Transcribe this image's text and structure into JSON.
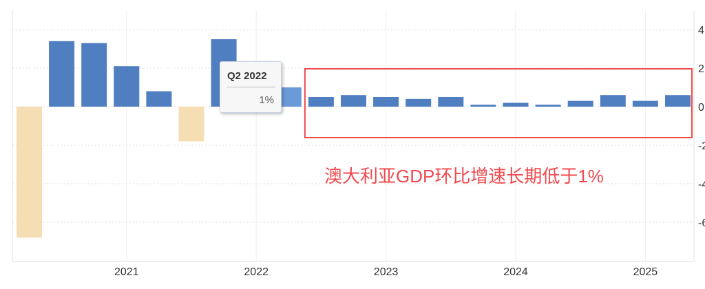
{
  "chart_data": {
    "type": "bar",
    "categories": [
      "Q2 2020",
      "Q3 2020",
      "Q4 2020",
      "Q1 2021",
      "Q2 2021",
      "Q3 2021",
      "Q4 2021",
      "Q1 2022",
      "Q2 2022",
      "Q3 2022",
      "Q4 2022",
      "Q1 2023",
      "Q2 2023",
      "Q3 2023",
      "Q4 2023",
      "Q1 2024",
      "Q2 2024",
      "Q3 2024",
      "Q4 2024",
      "Q1 2025",
      "Q2 2025"
    ],
    "values": [
      -6.8,
      3.4,
      3.3,
      2.1,
      0.8,
      -1.8,
      3.5,
      0.7,
      1.0,
      0.5,
      0.6,
      0.5,
      0.4,
      0.5,
      0.1,
      0.2,
      0.1,
      0.3,
      0.6,
      0.3,
      0.6
    ],
    "x_tick_labels": [
      "2021",
      "2022",
      "2023",
      "2024",
      "2025"
    ],
    "y_tick_labels": [
      "4",
      "2",
      "0",
      "-2",
      "-4",
      "-6"
    ],
    "ylim": [
      -8,
      5
    ],
    "grid": true,
    "y_axis_side": "right",
    "colors": {
      "positive": "#4f7fc0",
      "negative": "#f5deb3",
      "highlight": "#6a9ad8",
      "annotation": "#f0494e"
    },
    "highlighted_category": "Q2 2022",
    "tooltip": {
      "title": "Q2 2022",
      "value": "1%"
    },
    "annotation": {
      "text": "澳大利亚GDP环比增速长期低于1%",
      "box_from": "Q3 2022",
      "box_to": "Q2 2025"
    }
  }
}
